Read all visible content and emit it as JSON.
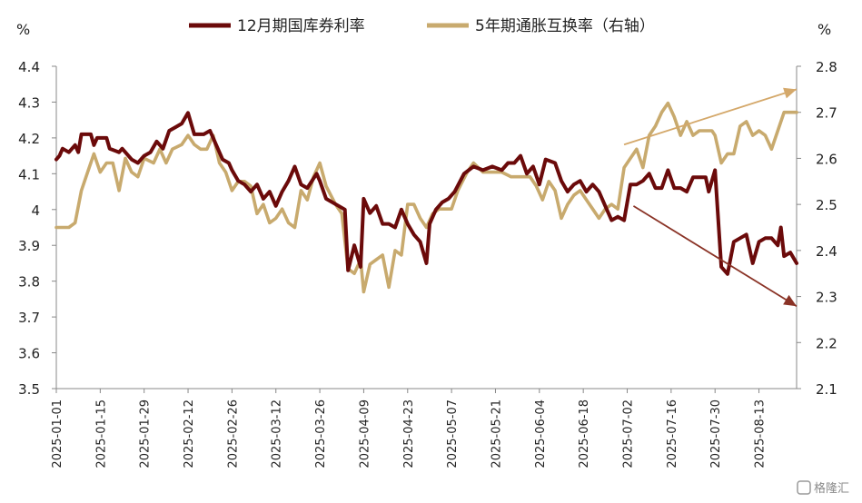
{
  "chart_data": {
    "type": "line",
    "left_unit": "%",
    "right_unit": "%",
    "y_left": {
      "min": 3.5,
      "max": 4.4,
      "ticks": [
        4.4,
        4.3,
        4.2,
        4.1,
        4,
        3.9,
        3.8,
        3.7,
        3.6,
        3.5
      ],
      "tick_labels": [
        "4.4",
        "4.3",
        "4.2",
        "4.1",
        "4",
        "3.9",
        "3.8",
        "3.7",
        "3.6",
        "3.5"
      ]
    },
    "y_right": {
      "min": 2.1,
      "max": 2.8,
      "ticks": [
        2.8,
        2.7,
        2.6,
        2.5,
        2.4,
        2.3,
        2.2,
        2.1
      ],
      "tick_labels": [
        "2.8",
        "2.7",
        "2.6",
        "2.5",
        "2.4",
        "2.3",
        "2.2",
        "2.1"
      ]
    },
    "x_ticks": [
      "2025-01-01",
      "2025-01-15",
      "2025-01-29",
      "2025-02-12",
      "2025-02-26",
      "2025-03-12",
      "2025-03-26",
      "2025-04-09",
      "2025-04-23",
      "2025-05-07",
      "2025-05-21",
      "2025-06-04",
      "2025-06-18",
      "2025-07-02",
      "2025-07-16",
      "2025-07-30",
      "2025-08-13"
    ],
    "grid": false,
    "legend_position": "top",
    "series": [
      {
        "name": "12月期国库券利率",
        "axis": "left",
        "color": "#6b0a0a",
        "points": [
          [
            "2025-01-01",
            4.14
          ],
          [
            "2025-01-02",
            4.15
          ],
          [
            "2025-01-03",
            4.17
          ],
          [
            "2025-01-05",
            4.16
          ],
          [
            "2025-01-07",
            4.18
          ],
          [
            "2025-01-08",
            4.16
          ],
          [
            "2025-01-09",
            4.21
          ],
          [
            "2025-01-12",
            4.21
          ],
          [
            "2025-01-13",
            4.18
          ],
          [
            "2025-01-14",
            4.2
          ],
          [
            "2025-01-17",
            4.2
          ],
          [
            "2025-01-18",
            4.17
          ],
          [
            "2025-01-21",
            4.16
          ],
          [
            "2025-01-22",
            4.17
          ],
          [
            "2025-01-25",
            4.14
          ],
          [
            "2025-01-27",
            4.13
          ],
          [
            "2025-01-29",
            4.15
          ],
          [
            "2025-01-31",
            4.16
          ],
          [
            "2025-02-02",
            4.19
          ],
          [
            "2025-02-04",
            4.17
          ],
          [
            "2025-02-06",
            4.22
          ],
          [
            "2025-02-08",
            4.23
          ],
          [
            "2025-02-10",
            4.24
          ],
          [
            "2025-02-12",
            4.27
          ],
          [
            "2025-02-14",
            4.21
          ],
          [
            "2025-02-17",
            4.21
          ],
          [
            "2025-02-19",
            4.22
          ],
          [
            "2025-02-21",
            4.18
          ],
          [
            "2025-02-23",
            4.14
          ],
          [
            "2025-02-25",
            4.13
          ],
          [
            "2025-02-26",
            4.11
          ],
          [
            "2025-02-28",
            4.08
          ],
          [
            "2025-03-02",
            4.07
          ],
          [
            "2025-03-04",
            4.05
          ],
          [
            "2025-03-06",
            4.07
          ],
          [
            "2025-03-08",
            4.03
          ],
          [
            "2025-03-10",
            4.05
          ],
          [
            "2025-03-12",
            4.01
          ],
          [
            "2025-03-14",
            4.05
          ],
          [
            "2025-03-16",
            4.08
          ],
          [
            "2025-03-18",
            4.12
          ],
          [
            "2025-03-20",
            4.07
          ],
          [
            "2025-03-22",
            4.06
          ],
          [
            "2025-03-25",
            4.1
          ],
          [
            "2025-03-26",
            4.08
          ],
          [
            "2025-03-28",
            4.03
          ],
          [
            "2025-04-01",
            4.01
          ],
          [
            "2025-04-03",
            4.0
          ],
          [
            "2025-04-04",
            3.83
          ],
          [
            "2025-04-06",
            3.9
          ],
          [
            "2025-04-08",
            3.84
          ],
          [
            "2025-04-09",
            4.03
          ],
          [
            "2025-04-11",
            3.99
          ],
          [
            "2025-04-13",
            4.01
          ],
          [
            "2025-04-15",
            3.96
          ],
          [
            "2025-04-17",
            3.96
          ],
          [
            "2025-04-19",
            3.95
          ],
          [
            "2025-04-21",
            4.0
          ],
          [
            "2025-04-23",
            3.96
          ],
          [
            "2025-04-25",
            3.93
          ],
          [
            "2025-04-27",
            3.91
          ],
          [
            "2025-04-29",
            3.85
          ],
          [
            "2025-04-30",
            3.96
          ],
          [
            "2025-05-02",
            4.0
          ],
          [
            "2025-05-04",
            4.02
          ],
          [
            "2025-05-06",
            4.03
          ],
          [
            "2025-05-08",
            4.05
          ],
          [
            "2025-05-11",
            4.1
          ],
          [
            "2025-05-14",
            4.12
          ],
          [
            "2025-05-17",
            4.11
          ],
          [
            "2025-05-20",
            4.12
          ],
          [
            "2025-05-23",
            4.11
          ],
          [
            "2025-05-25",
            4.13
          ],
          [
            "2025-05-27",
            4.13
          ],
          [
            "2025-05-29",
            4.15
          ],
          [
            "2025-05-31",
            4.1
          ],
          [
            "2025-06-02",
            4.12
          ],
          [
            "2025-06-04",
            4.07
          ],
          [
            "2025-06-06",
            4.14
          ],
          [
            "2025-06-09",
            4.13
          ],
          [
            "2025-06-11",
            4.08
          ],
          [
            "2025-06-13",
            4.05
          ],
          [
            "2025-06-15",
            4.07
          ],
          [
            "2025-06-17",
            4.08
          ],
          [
            "2025-06-19",
            4.05
          ],
          [
            "2025-06-21",
            4.07
          ],
          [
            "2025-06-23",
            4.05
          ],
          [
            "2025-06-25",
            4.01
          ],
          [
            "2025-06-27",
            3.97
          ],
          [
            "2025-06-29",
            3.98
          ],
          [
            "2025-07-01",
            3.97
          ],
          [
            "2025-07-03",
            4.07
          ],
          [
            "2025-07-05",
            4.07
          ],
          [
            "2025-07-07",
            4.08
          ],
          [
            "2025-07-09",
            4.1
          ],
          [
            "2025-07-11",
            4.06
          ],
          [
            "2025-07-13",
            4.06
          ],
          [
            "2025-07-15",
            4.11
          ],
          [
            "2025-07-17",
            4.06
          ],
          [
            "2025-07-19",
            4.06
          ],
          [
            "2025-07-21",
            4.05
          ],
          [
            "2025-07-23",
            4.09
          ],
          [
            "2025-07-25",
            4.09
          ],
          [
            "2025-07-27",
            4.09
          ],
          [
            "2025-07-28",
            4.05
          ],
          [
            "2025-07-30",
            4.11
          ],
          [
            "2025-08-01",
            3.84
          ],
          [
            "2025-08-03",
            3.82
          ],
          [
            "2025-08-05",
            3.91
          ],
          [
            "2025-08-07",
            3.92
          ],
          [
            "2025-08-09",
            3.93
          ],
          [
            "2025-08-11",
            3.85
          ],
          [
            "2025-08-13",
            3.91
          ],
          [
            "2025-08-15",
            3.92
          ],
          [
            "2025-08-17",
            3.92
          ],
          [
            "2025-08-19",
            3.9
          ],
          [
            "2025-08-20",
            3.95
          ],
          [
            "2025-08-21",
            3.87
          ],
          [
            "2025-08-23",
            3.88
          ],
          [
            "2025-08-25",
            3.85
          ]
        ]
      },
      {
        "name": "5年期通胀互换率（右轴）",
        "axis": "right",
        "color": "#c8aa6e",
        "points": [
          [
            "2025-01-01",
            2.45
          ],
          [
            "2025-01-03",
            2.45
          ],
          [
            "2025-01-05",
            2.45
          ],
          [
            "2025-01-07",
            2.46
          ],
          [
            "2025-01-09",
            2.53
          ],
          [
            "2025-01-11",
            2.57
          ],
          [
            "2025-01-13",
            2.61
          ],
          [
            "2025-01-15",
            2.57
          ],
          [
            "2025-01-17",
            2.59
          ],
          [
            "2025-01-19",
            2.59
          ],
          [
            "2025-01-21",
            2.53
          ],
          [
            "2025-01-23",
            2.6
          ],
          [
            "2025-01-25",
            2.57
          ],
          [
            "2025-01-27",
            2.56
          ],
          [
            "2025-01-29",
            2.6
          ],
          [
            "2025-02-01",
            2.59
          ],
          [
            "2025-02-03",
            2.62
          ],
          [
            "2025-02-05",
            2.59
          ],
          [
            "2025-02-07",
            2.62
          ],
          [
            "2025-02-10",
            2.63
          ],
          [
            "2025-02-12",
            2.65
          ],
          [
            "2025-02-14",
            2.63
          ],
          [
            "2025-02-16",
            2.62
          ],
          [
            "2025-02-18",
            2.62
          ],
          [
            "2025-02-20",
            2.65
          ],
          [
            "2025-02-22",
            2.59
          ],
          [
            "2025-02-24",
            2.57
          ],
          [
            "2025-02-26",
            2.53
          ],
          [
            "2025-02-28",
            2.55
          ],
          [
            "2025-03-02",
            2.55
          ],
          [
            "2025-03-04",
            2.54
          ],
          [
            "2025-03-06",
            2.48
          ],
          [
            "2025-03-08",
            2.5
          ],
          [
            "2025-03-10",
            2.46
          ],
          [
            "2025-03-12",
            2.47
          ],
          [
            "2025-03-14",
            2.49
          ],
          [
            "2025-03-16",
            2.46
          ],
          [
            "2025-03-18",
            2.45
          ],
          [
            "2025-03-20",
            2.53
          ],
          [
            "2025-03-22",
            2.51
          ],
          [
            "2025-03-24",
            2.56
          ],
          [
            "2025-03-26",
            2.59
          ],
          [
            "2025-03-28",
            2.54
          ],
          [
            "2025-03-31",
            2.5
          ],
          [
            "2025-04-02",
            2.48
          ],
          [
            "2025-04-04",
            2.36
          ],
          [
            "2025-04-06",
            2.35
          ],
          [
            "2025-04-08",
            2.38
          ],
          [
            "2025-04-09",
            2.31
          ],
          [
            "2025-04-11",
            2.37
          ],
          [
            "2025-04-13",
            2.38
          ],
          [
            "2025-04-15",
            2.39
          ],
          [
            "2025-04-17",
            2.32
          ],
          [
            "2025-04-19",
            2.4
          ],
          [
            "2025-04-21",
            2.39
          ],
          [
            "2025-04-23",
            2.5
          ],
          [
            "2025-04-25",
            2.5
          ],
          [
            "2025-04-27",
            2.47
          ],
          [
            "2025-04-29",
            2.45
          ],
          [
            "2025-05-01",
            2.48
          ],
          [
            "2025-05-03",
            2.49
          ],
          [
            "2025-05-05",
            2.49
          ],
          [
            "2025-05-07",
            2.49
          ],
          [
            "2025-05-09",
            2.53
          ],
          [
            "2025-05-12",
            2.57
          ],
          [
            "2025-05-14",
            2.59
          ],
          [
            "2025-05-17",
            2.57
          ],
          [
            "2025-05-20",
            2.57
          ],
          [
            "2025-05-23",
            2.57
          ],
          [
            "2025-05-26",
            2.56
          ],
          [
            "2025-05-29",
            2.56
          ],
          [
            "2025-06-01",
            2.56
          ],
          [
            "2025-06-03",
            2.54
          ],
          [
            "2025-06-05",
            2.51
          ],
          [
            "2025-06-07",
            2.55
          ],
          [
            "2025-06-09",
            2.53
          ],
          [
            "2025-06-11",
            2.47
          ],
          [
            "2025-06-13",
            2.5
          ],
          [
            "2025-06-15",
            2.52
          ],
          [
            "2025-06-17",
            2.53
          ],
          [
            "2025-06-19",
            2.51
          ],
          [
            "2025-06-21",
            2.49
          ],
          [
            "2025-06-23",
            2.47
          ],
          [
            "2025-06-25",
            2.49
          ],
          [
            "2025-06-27",
            2.5
          ],
          [
            "2025-06-29",
            2.49
          ],
          [
            "2025-07-01",
            2.58
          ],
          [
            "2025-07-03",
            2.6
          ],
          [
            "2025-07-05",
            2.62
          ],
          [
            "2025-07-07",
            2.58
          ],
          [
            "2025-07-09",
            2.65
          ],
          [
            "2025-07-11",
            2.67
          ],
          [
            "2025-07-13",
            2.7
          ],
          [
            "2025-07-15",
            2.72
          ],
          [
            "2025-07-17",
            2.69
          ],
          [
            "2025-07-19",
            2.65
          ],
          [
            "2025-07-21",
            2.68
          ],
          [
            "2025-07-23",
            2.65
          ],
          [
            "2025-07-25",
            2.66
          ],
          [
            "2025-07-27",
            2.66
          ],
          [
            "2025-07-29",
            2.66
          ],
          [
            "2025-07-30",
            2.65
          ],
          [
            "2025-08-01",
            2.59
          ],
          [
            "2025-08-03",
            2.61
          ],
          [
            "2025-08-05",
            2.61
          ],
          [
            "2025-08-07",
            2.67
          ],
          [
            "2025-08-09",
            2.68
          ],
          [
            "2025-08-11",
            2.65
          ],
          [
            "2025-08-13",
            2.66
          ],
          [
            "2025-08-15",
            2.65
          ],
          [
            "2025-08-17",
            2.62
          ],
          [
            "2025-08-19",
            2.66
          ],
          [
            "2025-08-21",
            2.7
          ],
          [
            "2025-08-23",
            2.7
          ],
          [
            "2025-08-25",
            2.7
          ]
        ]
      }
    ],
    "annotations": [
      {
        "kind": "arrow",
        "color": "#d4a86a",
        "from": [
          "2025-07-01",
          2.63
        ],
        "to": [
          "2025-08-25",
          2.75
        ],
        "axis": "right"
      },
      {
        "kind": "arrow",
        "color": "#8a3326",
        "from": [
          "2025-07-04",
          4.01
        ],
        "to": [
          "2025-08-25",
          3.73
        ],
        "axis": "left"
      }
    ]
  },
  "watermark": "格隆汇"
}
